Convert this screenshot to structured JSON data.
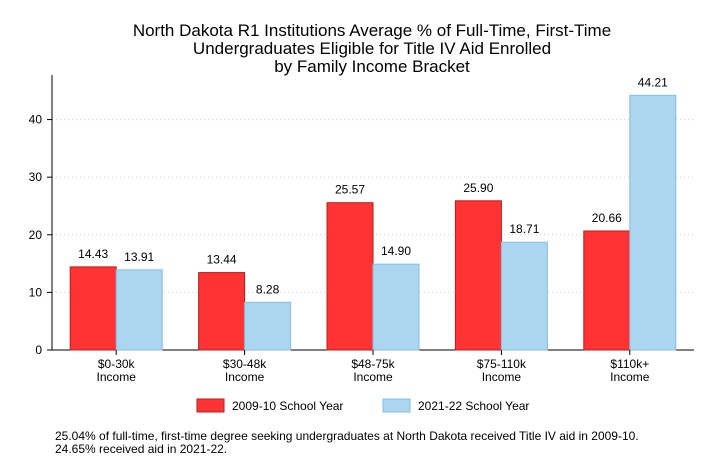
{
  "chart_data": {
    "type": "bar",
    "title_lines": [
      "North Dakota R1 Institutions Average % of Full-Time, First-Time",
      "Undergraduates Eligible for Title IV Aid Enrolled",
      "by Family Income Bracket"
    ],
    "categories": [
      [
        "$0-30k",
        "Income"
      ],
      [
        "$30-48k",
        "Income"
      ],
      [
        "$48-75k",
        "Income"
      ],
      [
        "$75-110k",
        "Income"
      ],
      [
        "$110k+",
        "Income"
      ]
    ],
    "series": [
      {
        "name": "2009-10 School Year",
        "color": "#ff3333",
        "stroke": "#b32020",
        "values": [
          14.43,
          13.44,
          25.57,
          25.9,
          20.66
        ],
        "labels": [
          "14.43",
          "13.44",
          "25.57",
          "25.90",
          "20.66"
        ]
      },
      {
        "name": "2021-22 School Year",
        "color": "#acd5ef",
        "stroke": "#86bde0",
        "values": [
          13.91,
          8.28,
          14.9,
          18.71,
          44.21
        ],
        "labels": [
          "13.91",
          "8.28",
          "14.90",
          "18.71",
          "44.21"
        ]
      }
    ],
    "yticks": [
      "0",
      "10",
      "20",
      "30",
      "40"
    ],
    "ylim": [
      0,
      46
    ],
    "xlabel": "",
    "ylabel": "",
    "grid": true,
    "legend_position": "bottom",
    "footnote": "25.04% of full-time, first-time degree seeking undergraduates at North Dakota received Title IV aid in 2009-10. 24.65% received aid in 2021-22."
  }
}
